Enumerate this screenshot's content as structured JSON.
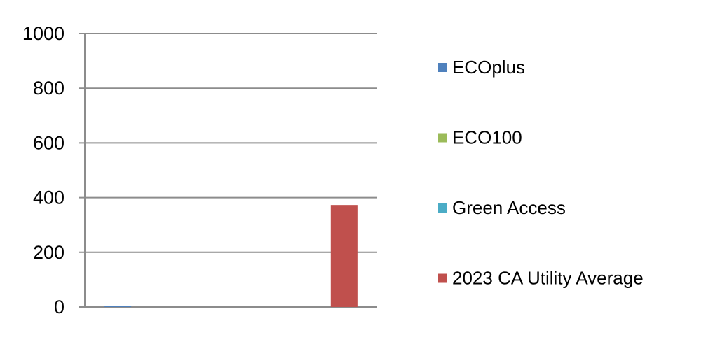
{
  "chart_data": {
    "type": "bar",
    "categories": [
      "",
      ""
    ],
    "series": [
      {
        "name": "ECOplus",
        "color": "#4f81bd",
        "values": [
          5,
          0
        ]
      },
      {
        "name": "ECO100",
        "color": "#9bbb59",
        "values": [
          0,
          0
        ]
      },
      {
        "name": "Green Access",
        "color": "#4bacc6",
        "values": [
          0,
          0
        ]
      },
      {
        "name": "2023 CA Utility Average",
        "color": "#c0504d",
        "values": [
          0,
          373
        ]
      }
    ],
    "yticks": [
      "0",
      "200",
      "400",
      "600",
      "800",
      "1000"
    ],
    "ylim": [
      0,
      1000
    ],
    "grid": true,
    "legend_position": "right"
  }
}
